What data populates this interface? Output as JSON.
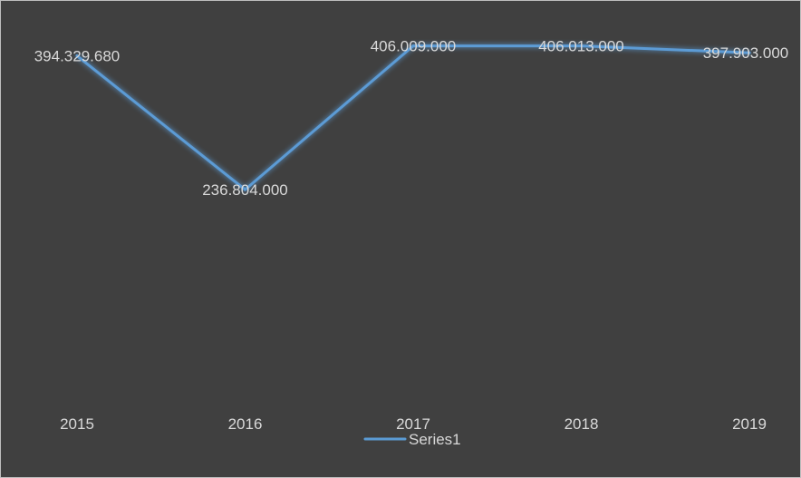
{
  "chart_data": {
    "type": "line",
    "categories": [
      "2015",
      "2016",
      "2017",
      "2018",
      "2019"
    ],
    "series": [
      {
        "name": "Series1",
        "values": [
          394.32968,
          236.804,
          406.009,
          406.013,
          397.903
        ],
        "data_labels": [
          "394.329.680",
          "236.804.000",
          "406.009.000",
          "406.013.000",
          "397.903.000"
        ]
      }
    ],
    "title": "",
    "xlabel": "",
    "ylabel": "",
    "ylim": [
      0,
      450
    ],
    "grid": false,
    "legend": "bottom",
    "colors": {
      "background": "#404040",
      "line": "#5b9bd5",
      "text": "#d9d9d9"
    }
  }
}
